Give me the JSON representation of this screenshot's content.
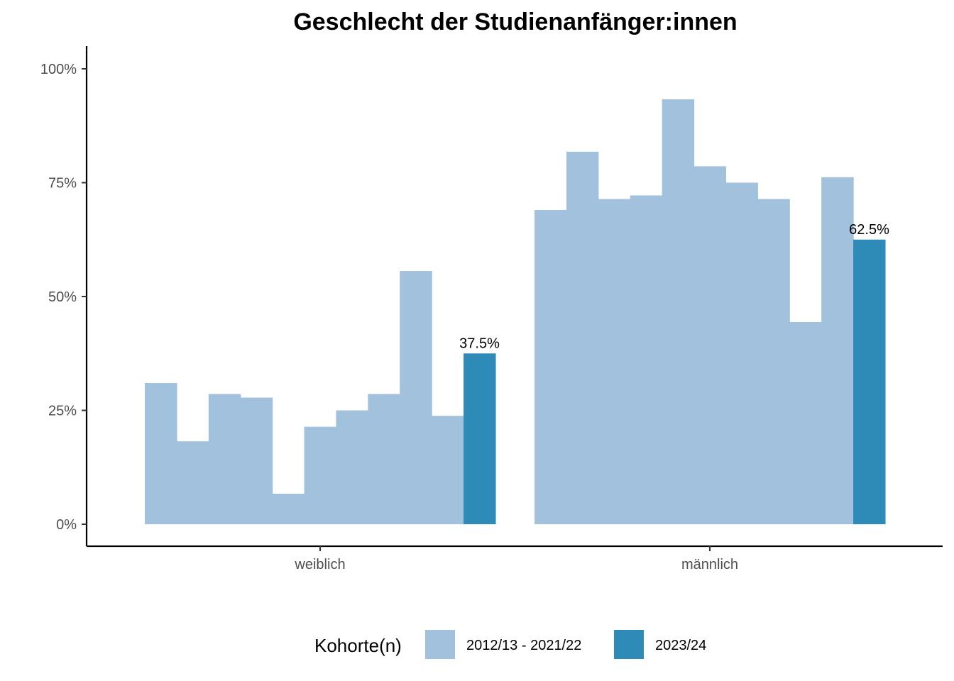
{
  "chart_data": {
    "type": "bar",
    "title": "Geschlecht der Studienanfänger:innen",
    "xlabel": "",
    "ylabel": "",
    "ylim": [
      0,
      1.0
    ],
    "y_ticks": [
      {
        "value": 0,
        "label": "0%"
      },
      {
        "value": 0.25,
        "label": "25%"
      },
      {
        "value": 0.5,
        "label": "50%"
      },
      {
        "value": 0.75,
        "label": "75%"
      },
      {
        "value": 1.0,
        "label": "100%"
      }
    ],
    "categories": [
      "weiblich",
      "männlich"
    ],
    "series": [
      {
        "legend_group": "2012/13 - 2021/22",
        "values": [
          0.31,
          0.69
        ]
      },
      {
        "legend_group": "2012/13 - 2021/22",
        "values": [
          0.182,
          0.818
        ]
      },
      {
        "legend_group": "2012/13 - 2021/22",
        "values": [
          0.286,
          0.714
        ]
      },
      {
        "legend_group": "2012/13 - 2021/22",
        "values": [
          0.278,
          0.722
        ]
      },
      {
        "legend_group": "2012/13 - 2021/22",
        "values": [
          0.067,
          0.933
        ]
      },
      {
        "legend_group": "2012/13 - 2021/22",
        "values": [
          0.214,
          0.786
        ]
      },
      {
        "legend_group": "2012/13 - 2021/22",
        "values": [
          0.25,
          0.75
        ]
      },
      {
        "legend_group": "2012/13 - 2021/22",
        "values": [
          0.286,
          0.714
        ]
      },
      {
        "legend_group": "2012/13 - 2021/22",
        "values": [
          0.556,
          0.444
        ]
      },
      {
        "legend_group": "2012/13 - 2021/22",
        "values": [
          0.238,
          0.762
        ]
      },
      {
        "legend_group": "2023/24",
        "values": [
          0.375,
          0.625
        ],
        "labels": [
          "37.5%",
          "62.5%"
        ]
      }
    ],
    "legend": {
      "title": "Kohorte(n)",
      "position": "bottom",
      "items": [
        {
          "label": "2012/13 - 2021/22",
          "color": "#a1c1dd"
        },
        {
          "label": "2023/24",
          "color": "#2e8bb8"
        }
      ]
    },
    "colors": {
      "past": "#a1c1dd",
      "current": "#2e8bb8"
    },
    "grid": false
  }
}
